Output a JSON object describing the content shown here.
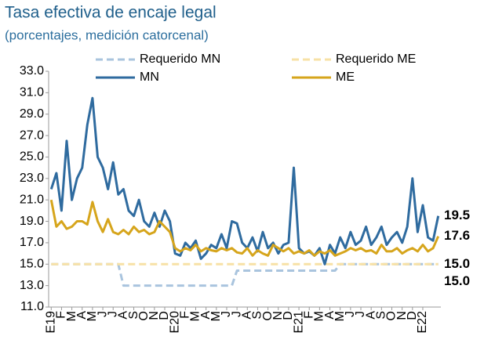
{
  "chart_data": {
    "type": "line",
    "title": "Tasa efectiva de encaje legal",
    "subtitle": "(porcentajes, medición catorcenal)",
    "categories": [
      "E19",
      null,
      "F",
      null,
      "M",
      null,
      "A",
      null,
      "M",
      null,
      "J",
      null,
      "J",
      null,
      "A",
      null,
      "S",
      null,
      "O",
      null,
      "N",
      null,
      "D",
      null,
      "E20",
      null,
      "F",
      null,
      "M",
      null,
      "A",
      null,
      "M",
      null,
      "J",
      null,
      "J",
      null,
      "A",
      null,
      "S",
      null,
      "O",
      null,
      "N",
      null,
      "D",
      null,
      "E21",
      null,
      "F",
      null,
      "M",
      null,
      "A",
      null,
      "M",
      null,
      "J",
      null,
      "J",
      null,
      "A",
      null,
      "S",
      null,
      "O",
      null,
      "N",
      null,
      "D",
      null,
      "E22",
      null,
      null,
      null
    ],
    "series": [
      {
        "name": "Requerido MN",
        "color": "#a9c4de",
        "style": "dashed",
        "values": [
          15,
          15,
          15,
          15,
          15,
          15,
          15,
          15,
          15,
          15,
          15,
          15,
          15,
          15,
          13,
          13,
          13,
          13,
          13,
          13,
          13,
          13,
          13,
          13,
          13,
          13,
          13,
          13,
          13,
          13,
          13,
          13,
          13,
          13,
          13,
          13,
          14.4,
          14.4,
          14.4,
          14.4,
          14.4,
          14.4,
          14.4,
          14.4,
          14.4,
          14.4,
          14.4,
          14.4,
          14.4,
          14.4,
          14.4,
          14.4,
          14.4,
          14.4,
          14.4,
          14.4,
          15,
          15,
          15,
          15,
          15,
          15,
          15,
          15,
          15,
          15,
          15,
          15,
          15,
          15,
          15,
          15,
          15,
          15,
          15,
          15
        ]
      },
      {
        "name": "Requerido ME",
        "color": "#f7e1a6",
        "style": "dashed",
        "values": [
          15,
          15,
          15,
          15,
          15,
          15,
          15,
          15,
          15,
          15,
          15,
          15,
          15,
          15,
          15,
          15,
          15,
          15,
          15,
          15,
          15,
          15,
          15,
          15,
          15,
          15,
          15,
          15,
          15,
          15,
          15,
          15,
          15,
          15,
          15,
          15,
          15,
          15,
          15,
          15,
          15,
          15,
          15,
          15,
          15,
          15,
          15,
          15,
          15,
          15,
          15,
          15,
          15,
          15,
          15,
          15,
          15,
          15,
          15,
          15,
          15,
          15,
          15,
          15,
          15,
          15,
          15,
          15,
          15,
          15,
          15,
          15,
          15,
          15,
          15,
          15
        ]
      },
      {
        "name": "MN",
        "color": "#2f6b9f",
        "style": "solid",
        "values": [
          22,
          23.5,
          20,
          26.5,
          21,
          23,
          24,
          28,
          30.5,
          25,
          24,
          22,
          24.5,
          21.5,
          22,
          20,
          19.5,
          21,
          19,
          18.5,
          19.8,
          18.5,
          20,
          19,
          16,
          15.8,
          17,
          16.5,
          17.2,
          15.5,
          16,
          16.8,
          16.5,
          17.8,
          16.5,
          19,
          18.8,
          17,
          16.5,
          17.5,
          16.2,
          18,
          16.5,
          17,
          16,
          16.8,
          17,
          24,
          16.5,
          16,
          16.2,
          15.8,
          16.5,
          15,
          16.8,
          16,
          17.5,
          16.5,
          18,
          16.8,
          17.2,
          18.5,
          16.8,
          17.5,
          18.5,
          16.8,
          17.5,
          18,
          17,
          18.5,
          23,
          18,
          20.5,
          17.5,
          17.2,
          19.5
        ]
      },
      {
        "name": "ME",
        "color": "#d6a51c",
        "style": "solid",
        "values": [
          21,
          18.5,
          19,
          18.3,
          18.5,
          19,
          19,
          18.7,
          20.8,
          19,
          18,
          19.2,
          18,
          17.8,
          18.2,
          17.8,
          18.5,
          18,
          18.2,
          17.8,
          18,
          19,
          18.5,
          18,
          16.5,
          16.2,
          16.5,
          16.3,
          16.8,
          16.2,
          16.5,
          16.3,
          16.2,
          16.5,
          16.3,
          16.5,
          16.1,
          16,
          16.5,
          15.8,
          16.3,
          16,
          15.8,
          16.8,
          16.5,
          16.2,
          16.5,
          16,
          16.2,
          16,
          16.3,
          15.8,
          16.2,
          16,
          16.3,
          15.8,
          16,
          16.2,
          16.5,
          16.3,
          16.5,
          16.2,
          16.3,
          16,
          16.8,
          16.2,
          16.2,
          16.5,
          16,
          16.3,
          16.5,
          16.2,
          16.8,
          16.2,
          16.5,
          17.6
        ]
      }
    ],
    "ylim": [
      11,
      33
    ],
    "yticks": [
      {
        "value": 11,
        "label": "11.0"
      },
      {
        "value": 13,
        "label": "13.0"
      },
      {
        "value": 15,
        "label": "15.0"
      },
      {
        "value": 17,
        "label": "17.0"
      },
      {
        "value": 19,
        "label": "19.0"
      },
      {
        "value": 21,
        "label": "21.0"
      },
      {
        "value": 23,
        "label": "23.0"
      },
      {
        "value": 25,
        "label": "25.0"
      },
      {
        "value": 27,
        "label": "27.0"
      },
      {
        "value": 29,
        "label": "29.0"
      },
      {
        "value": 31,
        "label": "31.0"
      },
      {
        "value": 33,
        "label": "33.0"
      }
    ],
    "grid": false,
    "annotations": [
      {
        "label": "19.5",
        "value": 19.5,
        "color": "#2b4d72"
      },
      {
        "label": "17.6",
        "value": 17.6,
        "color": "#d6a51c"
      },
      {
        "label": "15.0",
        "value": 15,
        "color": "#7fa6cb"
      },
      {
        "label": "15.0",
        "value": 15,
        "color": "#d6a51c"
      }
    ]
  }
}
